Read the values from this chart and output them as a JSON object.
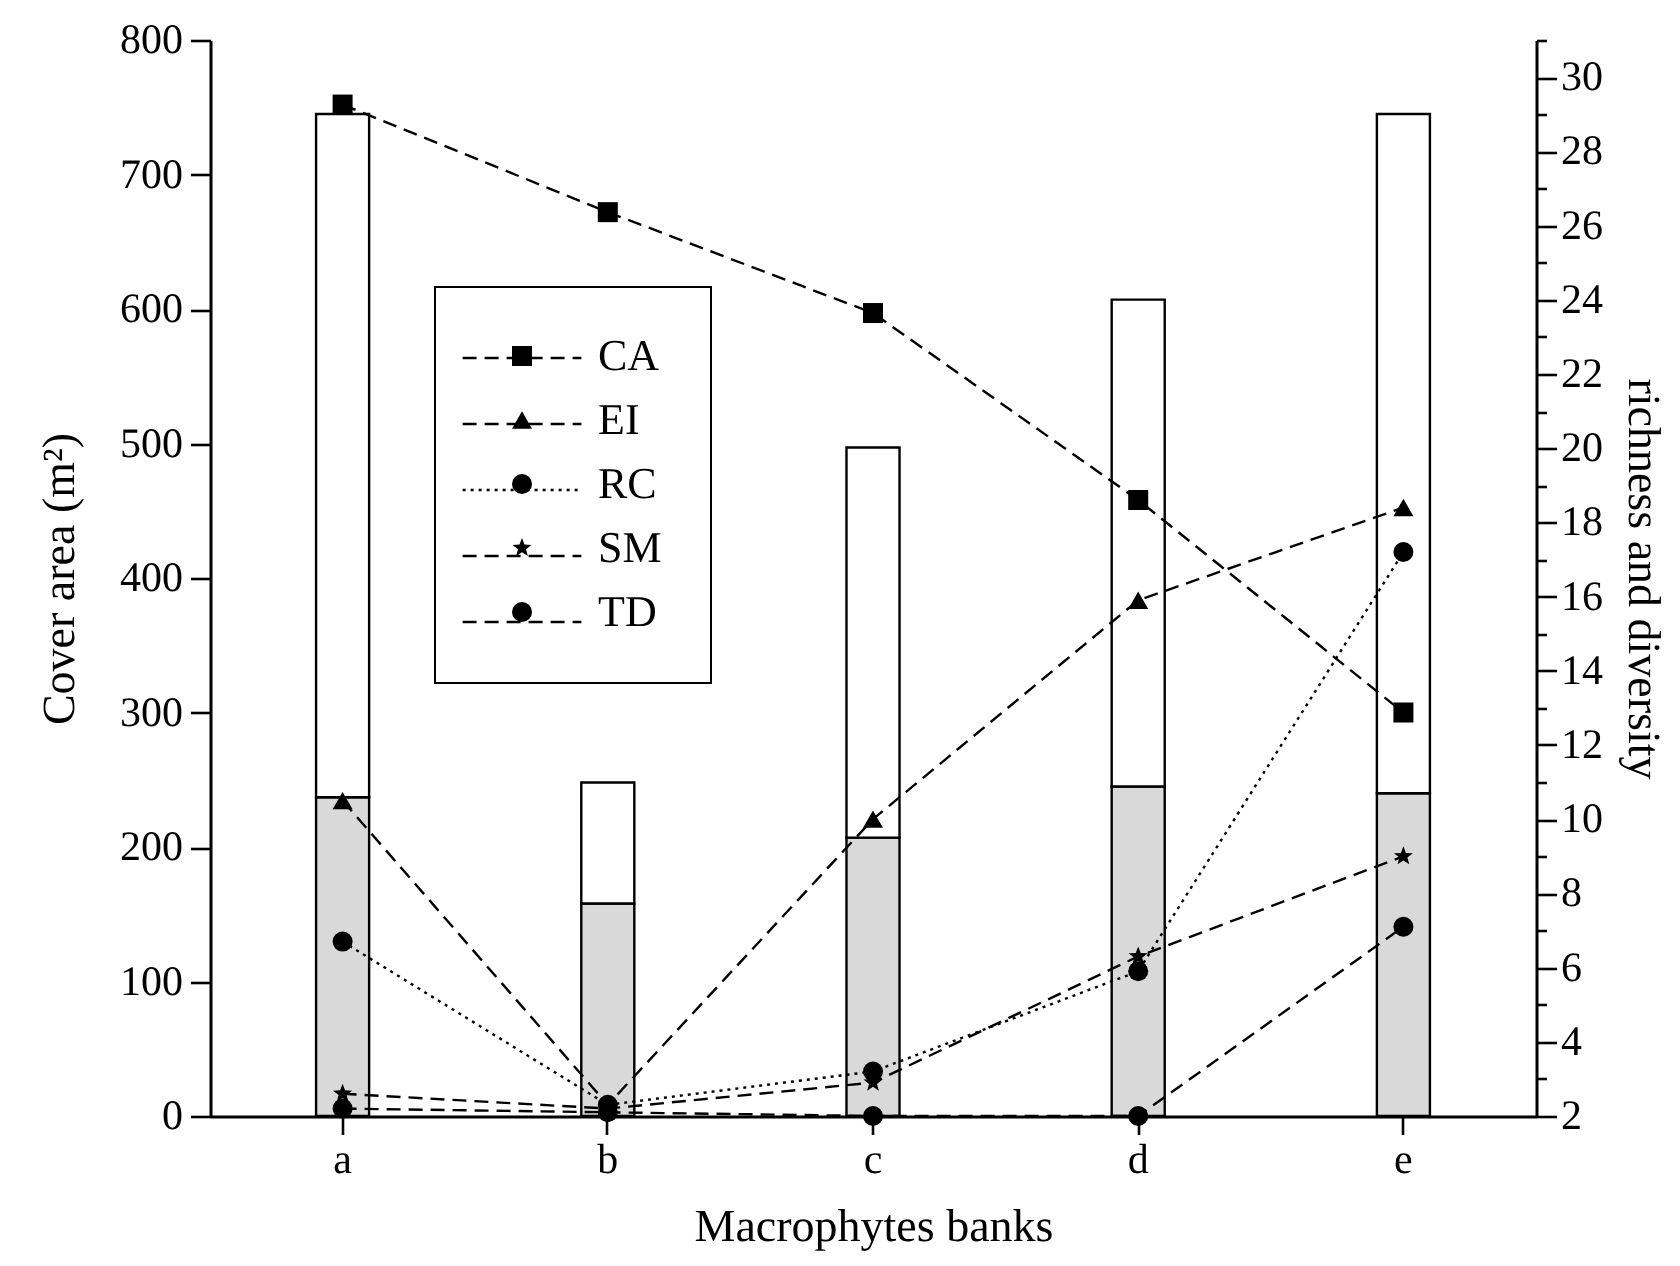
{
  "chart_data": {
    "type": "bar",
    "xlabel": "Macrophytes banks",
    "ylabel": "Cover area (m²)",
    "y2label": "richness and diversity",
    "categories": [
      "a",
      "b",
      "c",
      "d",
      "e"
    ],
    "stacked": true,
    "series": [
      {
        "color": "#d9d9d9",
        "values": [
          237,
          158,
          207,
          245,
          240
        ]
      },
      {
        "color": "#ffffff",
        "values": [
          508,
          90,
          290,
          362,
          505
        ]
      },
      {
        "type": "line",
        "name": "CA",
        "color": "#000000",
        "marker": "square",
        "line_style": "dashed",
        "values": [
          752,
          672,
          597,
          458,
          300
        ]
      },
      {
        "type": "line",
        "name": "EI",
        "color": "#000000",
        "axis": "y2",
        "marker": "triangle",
        "line_style": "dashed",
        "values": [
          10.5,
          2.3,
          10.0,
          15.9,
          18.4
        ]
      },
      {
        "type": "line",
        "name": "RC",
        "color": "#000000",
        "axis": "y2",
        "marker": "circle",
        "line_style": "dotted",
        "values": [
          6.7,
          2.3,
          3.2,
          5.9,
          17.2
        ]
      },
      {
        "type": "line",
        "name": "SM",
        "color": "#000000",
        "axis": "y2",
        "marker": "star",
        "line_style": "dashed",
        "values": [
          2.6,
          2.2,
          2.9,
          6.3,
          9.0
        ]
      },
      {
        "type": "line",
        "name": "TD",
        "color": "#000000",
        "axis": "y2",
        "marker": "circle",
        "line_style": "dashed",
        "values": [
          2.2,
          2.1,
          2.0,
          2.0,
          7.1
        ]
      }
    ],
    "ylim": [
      0,
      800
    ],
    "yticks": [
      0,
      100,
      200,
      300,
      400,
      500,
      600,
      700,
      800
    ],
    "y2lim": [
      2,
      31
    ],
    "y2ticks": [
      2,
      {
        "value": 3,
        "label": null
      },
      4,
      {
        "value": 5,
        "label": null
      },
      6,
      {
        "value": 7,
        "label": null
      },
      8,
      {
        "value": 9,
        "label": null
      },
      10,
      {
        "value": 11,
        "label": null
      },
      12,
      {
        "value": 13,
        "label": null
      },
      14,
      {
        "value": 15,
        "label": null
      },
      16,
      {
        "value": 17,
        "label": null
      },
      18,
      {
        "value": 19,
        "label": null
      },
      20,
      {
        "value": 21,
        "label": null
      },
      22,
      {
        "value": 23,
        "label": null
      },
      24,
      {
        "value": 25,
        "label": null
      },
      26,
      {
        "value": 27,
        "label": null
      },
      28,
      {
        "value": 29,
        "label": null
      },
      30,
      {
        "value": 31,
        "label": null
      }
    ],
    "legend": "top left",
    "grid": false
  }
}
